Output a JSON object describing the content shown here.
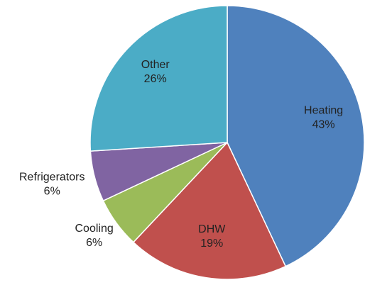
{
  "chart_data": {
    "type": "pie",
    "categories": [
      "Heating",
      "DHW",
      "Cooling",
      "Refrigerators",
      "Other"
    ],
    "values": [
      43,
      19,
      6,
      6,
      26
    ],
    "value_labels": [
      "43%",
      "19%",
      "6%",
      "6%",
      "26%"
    ],
    "colors": [
      "#4f81bd",
      "#c0504d",
      "#9bbb59",
      "#8064a2",
      "#4bacc6"
    ]
  }
}
